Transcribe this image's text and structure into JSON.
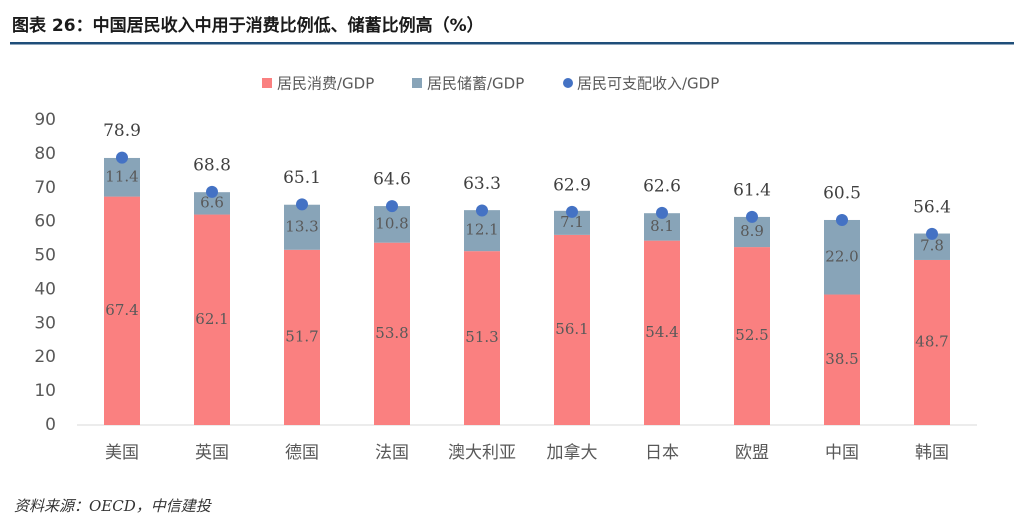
{
  "chart_data": {
    "type": "bar",
    "stacked": true,
    "title": "图表 26：中国居民收入中用于消费比例低、储蓄比例高（%）",
    "source": "资料来源：OECD，中信建投",
    "categories": [
      "美国",
      "英国",
      "德国",
      "法国",
      "澳大利亚",
      "加拿大",
      "日本",
      "欧盟",
      "中国",
      "韩国"
    ],
    "series": [
      {
        "name": "居民消费/GDP",
        "type": "bar",
        "color": "#fa8080",
        "values": [
          67.4,
          62.1,
          51.7,
          53.8,
          51.3,
          56.1,
          54.4,
          52.5,
          38.5,
          48.7
        ]
      },
      {
        "name": "居民储蓄/GDP",
        "type": "bar",
        "color": "#88a4b8",
        "values": [
          11.4,
          6.6,
          13.3,
          10.8,
          12.1,
          7.1,
          8.1,
          8.9,
          22.0,
          7.8
        ],
        "value_labels": [
          "11.4",
          "6.6",
          "13.3",
          "10.8",
          "12.1",
          "7.1",
          "8.1",
          "8.9",
          "22.0",
          "7.8"
        ]
      },
      {
        "name": "居民可支配收入/GDP",
        "type": "scatter",
        "color": "#4472c4",
        "values": [
          78.9,
          68.8,
          65.1,
          64.6,
          63.3,
          62.9,
          62.6,
          61.4,
          60.5,
          56.4
        ]
      }
    ],
    "ylim": [
      0,
      90
    ],
    "yticks": [
      0,
      10,
      20,
      30,
      40,
      50,
      60,
      70,
      80,
      90
    ],
    "grid": false,
    "legend": "top"
  }
}
